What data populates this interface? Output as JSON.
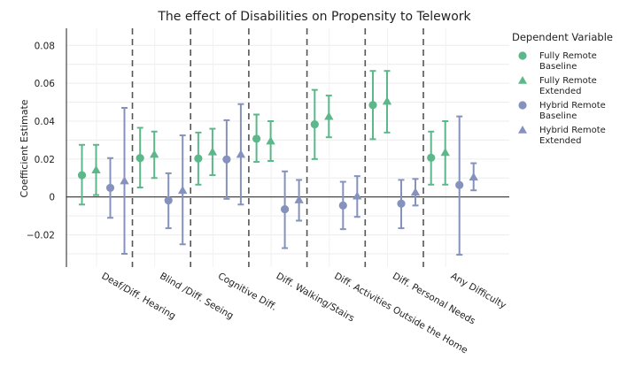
{
  "chart_data": {
    "type": "scatter",
    "title": "The effect of Disabilities on Propensity to Telework",
    "xlabel": "",
    "ylabel": "Coefficient Estimate",
    "ylim": [
      -0.037,
      0.089
    ],
    "yticks": [
      -0.02,
      0,
      0.02,
      0.04,
      0.06,
      0.08
    ],
    "ytick_labels": [
      "−0.02",
      "0",
      "0.02",
      "0.04",
      "0.06",
      "0.08"
    ],
    "grid": true,
    "legend_position": "right",
    "legend_title": "Dependent Variable",
    "categories": [
      "Deaf/Diff. Hearing",
      "Blind /Diff. Seeing",
      "Cognitive Diff.",
      "Diff. Walking/Stairs",
      "Diff. Activities Outside the Home",
      "Diff. Personal Needs",
      "Any Difficulty"
    ],
    "series": [
      {
        "name": "Fully Remote Baseline",
        "marker": "circle",
        "color": "#5cb88a",
        "values": [
          0.0115,
          0.0205,
          0.0203,
          0.0307,
          0.0383,
          0.0485,
          0.0207
        ],
        "ci_low": [
          -0.004,
          0.005,
          0.0065,
          0.0185,
          0.02,
          0.0305,
          0.0065
        ],
        "ci_high": [
          0.0275,
          0.0365,
          0.034,
          0.0435,
          0.0565,
          0.0665,
          0.0345
        ]
      },
      {
        "name": "Fully Remote Extended",
        "marker": "triangle",
        "color": "#5cb88a",
        "values": [
          0.0143,
          0.0225,
          0.0238,
          0.0295,
          0.0425,
          0.0505,
          0.0235
        ],
        "ci_low": [
          0.001,
          0.01,
          0.0115,
          0.019,
          0.0315,
          0.034,
          0.0065
        ],
        "ci_high": [
          0.0275,
          0.0345,
          0.036,
          0.04,
          0.0535,
          0.0665,
          0.04
        ]
      },
      {
        "name": "Hybrid Remote Baseline",
        "marker": "circle",
        "color": "#8592bd",
        "values": [
          0.0048,
          -0.0018,
          0.0198,
          -0.0065,
          -0.0045,
          -0.0035,
          0.0063
        ],
        "ci_low": [
          -0.011,
          -0.0165,
          -0.001,
          -0.027,
          -0.017,
          -0.0165,
          -0.0305
        ],
        "ci_high": [
          0.0205,
          0.0125,
          0.0405,
          0.0135,
          0.008,
          0.009,
          0.0425
        ]
      },
      {
        "name": "Hybrid Remote Extended",
        "marker": "triangle",
        "color": "#8592bd",
        "values": [
          0.0085,
          0.0035,
          0.0225,
          -0.0015,
          0.0005,
          0.0025,
          0.0105
        ],
        "ci_low": [
          -0.03,
          -0.025,
          -0.004,
          -0.0125,
          -0.0105,
          -0.0045,
          0.0035
        ],
        "ci_high": [
          0.047,
          0.0325,
          0.049,
          0.009,
          0.011,
          0.0095,
          0.0178
        ]
      }
    ],
    "legend_entries": [
      [
        "Fully Remote",
        "Baseline"
      ],
      [
        "Fully Remote",
        "Extended"
      ],
      [
        "Hybrid Remote",
        "Baseline"
      ],
      [
        "Hybrid Remote",
        "Extended"
      ]
    ]
  }
}
